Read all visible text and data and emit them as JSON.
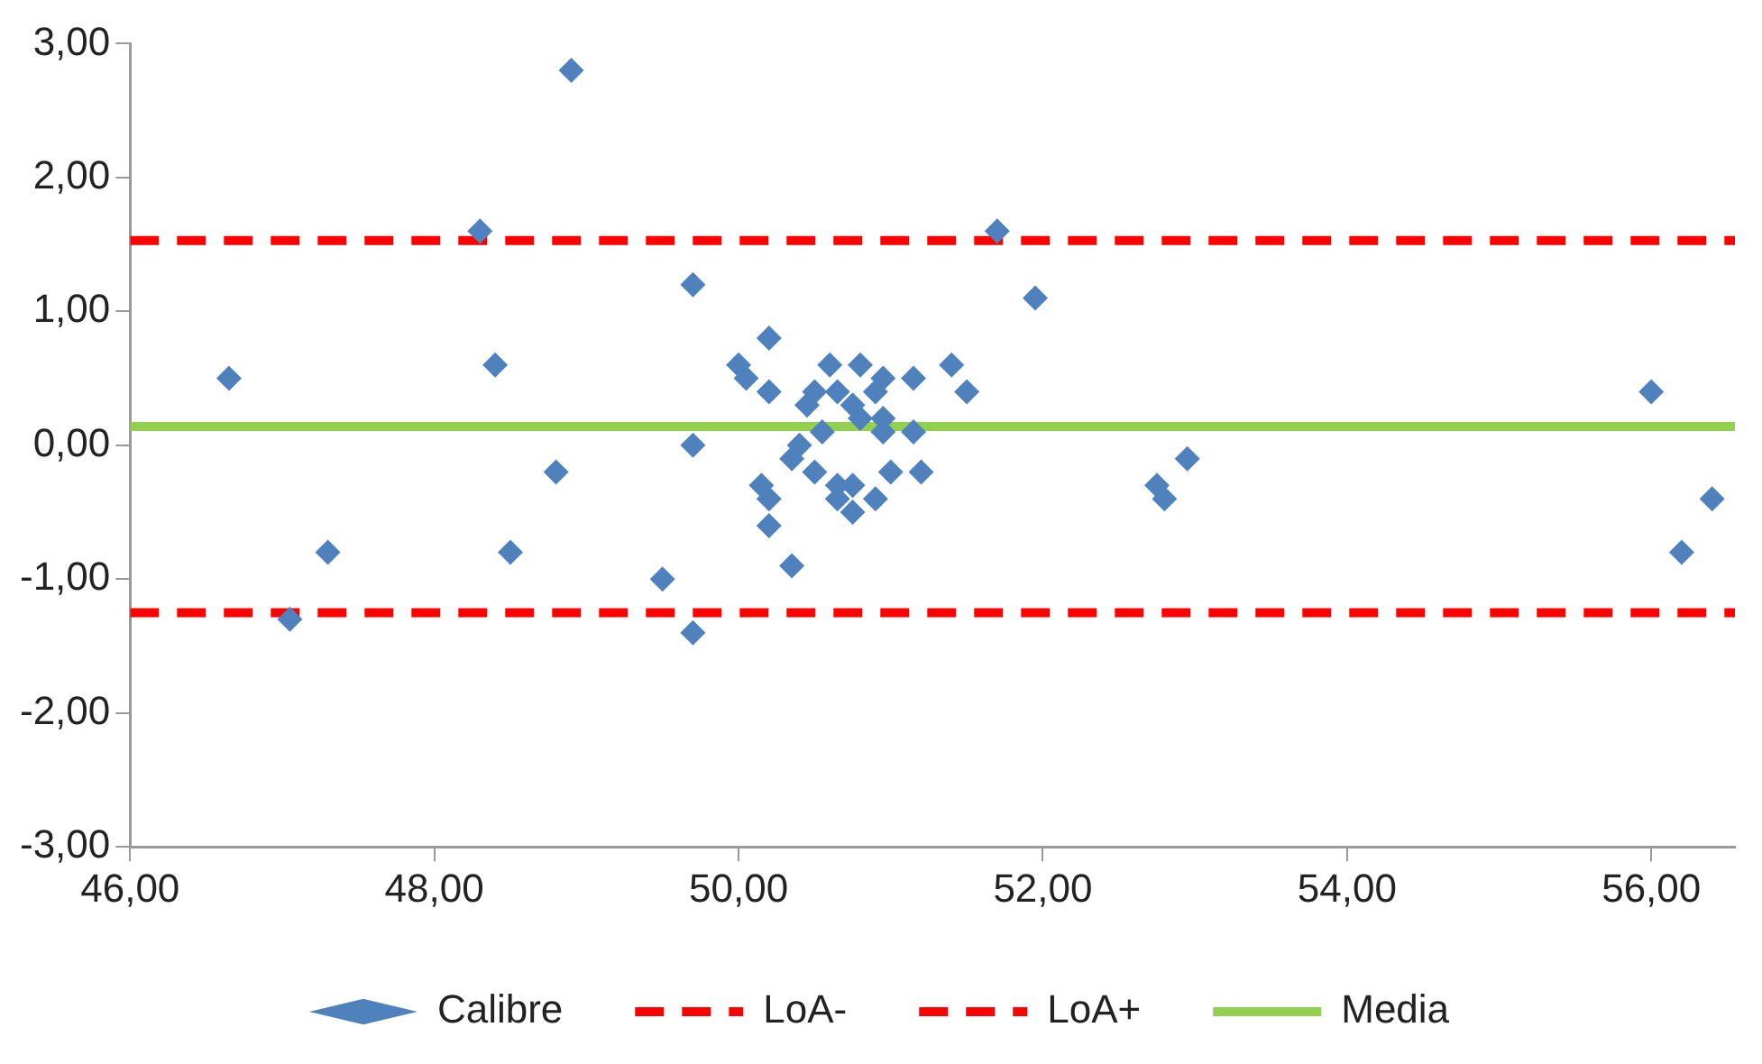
{
  "chart_data": {
    "type": "scatter",
    "xlim": [
      46,
      56.55
    ],
    "ylim": [
      -3,
      3
    ],
    "xticks": [
      {
        "value": 46,
        "label": "46,00"
      },
      {
        "value": 48,
        "label": "48,00"
      },
      {
        "value": 50,
        "label": "50,00"
      },
      {
        "value": 52,
        "label": "52,00"
      },
      {
        "value": 54,
        "label": "54,00"
      },
      {
        "value": 56,
        "label": "56,00"
      }
    ],
    "yticks": [
      {
        "value": -3,
        "label": "-3,00"
      },
      {
        "value": -2,
        "label": "-2,00"
      },
      {
        "value": -1,
        "label": "-1,00"
      },
      {
        "value": 0,
        "label": "0,00"
      },
      {
        "value": 1,
        "label": "1,00"
      },
      {
        "value": 2,
        "label": "2,00"
      },
      {
        "value": 3,
        "label": "3,00"
      }
    ],
    "grid": false,
    "legend": "bottom",
    "series": [
      {
        "name": "Calibre",
        "marker": "diamond",
        "color": "#4f81bd",
        "x": [
          48.9,
          48.3,
          51.7,
          49.7,
          51.95,
          46.65,
          48.4,
          50.2,
          50.0,
          50.05,
          50.2,
          50.6,
          50.8,
          50.95,
          51.15,
          51.4,
          51.5,
          50.5,
          50.45,
          50.65,
          50.9,
          50.75,
          50.8,
          50.95,
          50.95,
          51.15,
          50.55,
          49.7,
          50.4,
          50.35,
          48.8,
          50.15,
          50.2,
          50.2,
          50.5,
          50.65,
          50.75,
          50.65,
          50.75,
          50.9,
          51.0,
          51.2,
          50.35,
          49.5,
          49.7,
          47.05,
          47.3,
          48.5,
          56.0,
          52.95,
          52.75,
          52.8,
          56.4,
          56.2
        ],
        "values": [
          2.8,
          1.6,
          1.6,
          1.2,
          1.1,
          0.5,
          0.6,
          0.8,
          0.6,
          0.5,
          0.4,
          0.6,
          0.6,
          0.5,
          0.5,
          0.6,
          0.4,
          0.4,
          0.3,
          0.4,
          0.4,
          0.3,
          0.2,
          0.2,
          0.1,
          0.1,
          0.1,
          0.0,
          0.0,
          -0.1,
          -0.2,
          -0.3,
          -0.4,
          -0.6,
          -0.2,
          -0.3,
          -0.3,
          -0.4,
          -0.5,
          -0.4,
          -0.2,
          -0.2,
          -0.9,
          -1.0,
          -1.4,
          -1.3,
          -0.8,
          -0.8,
          0.4,
          -0.1,
          -0.3,
          -0.4,
          -0.4,
          -0.8
        ]
      },
      {
        "name": "LoA-",
        "type": "line",
        "marker": "none",
        "line_style": "dashed",
        "color": "#ff0000",
        "x": [
          46,
          56.55
        ],
        "values": [
          -1.25,
          -1.25
        ]
      },
      {
        "name": "LoA+",
        "type": "line",
        "marker": "none",
        "line_style": "dashed",
        "color": "#ff0000",
        "x": [
          46,
          56.55
        ],
        "values": [
          1.53,
          1.53
        ]
      },
      {
        "name": "Media",
        "type": "line",
        "marker": "none",
        "line_style": "solid",
        "color": "#92d050",
        "x": [
          46,
          56.55
        ],
        "values": [
          0.14,
          0.14
        ]
      }
    ]
  }
}
